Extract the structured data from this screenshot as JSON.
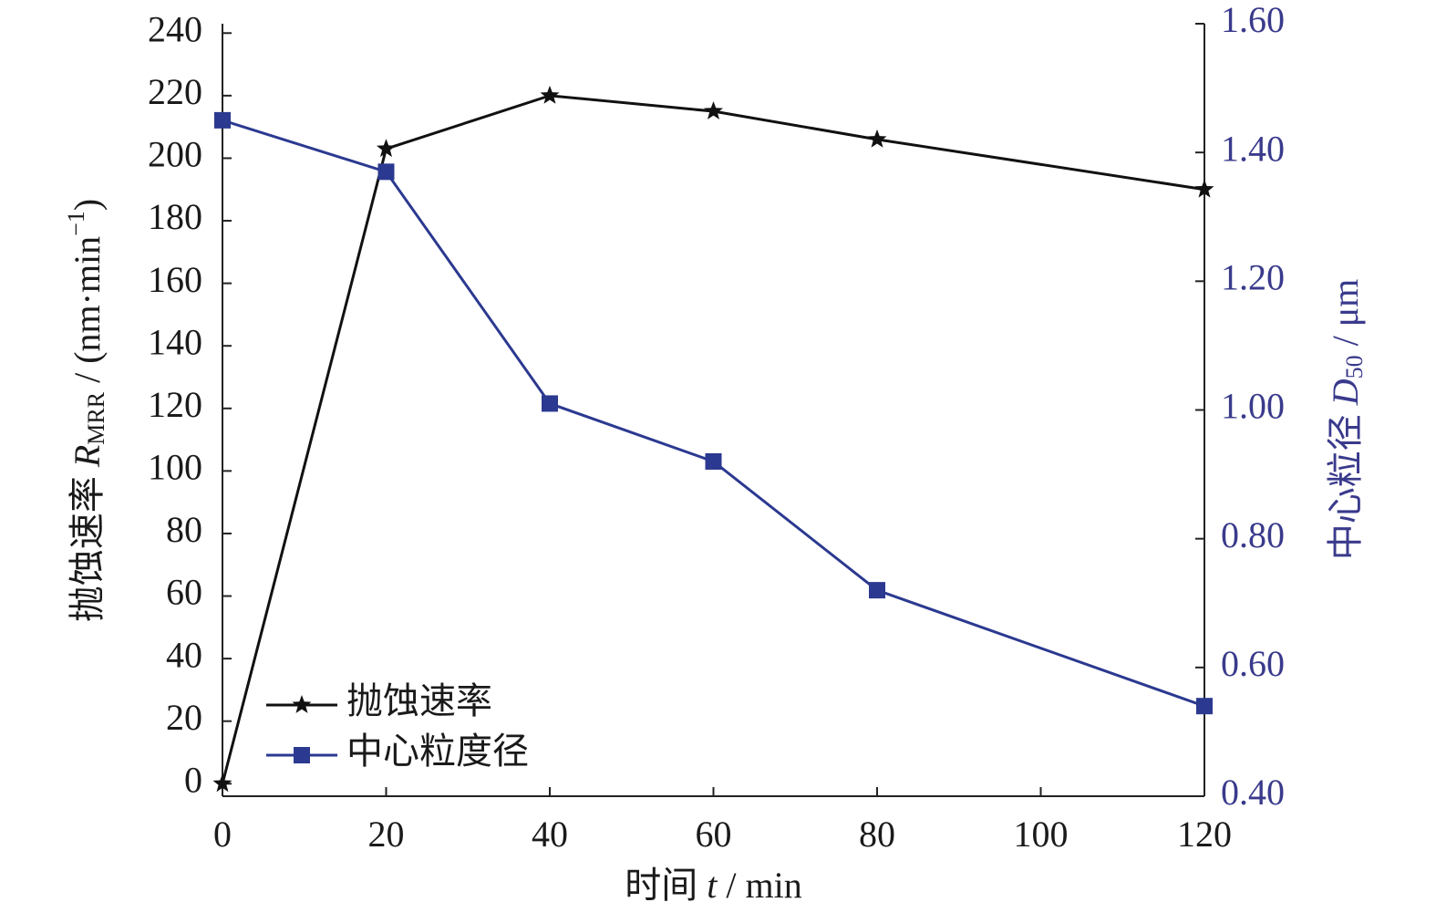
{
  "chart_data": {
    "type": "line",
    "x": [
      0,
      20,
      40,
      60,
      80,
      120
    ],
    "xlim": [
      0,
      120
    ],
    "xticks": [
      0,
      20,
      40,
      60,
      80,
      100,
      120
    ],
    "ylim": [
      -4,
      243
    ],
    "yticks": [
      0,
      20,
      40,
      60,
      80,
      100,
      120,
      140,
      160,
      180,
      200,
      220,
      240
    ],
    "y2lim": [
      0.4,
      1.6
    ],
    "y2ticks": [
      {
        "value": 0.4,
        "label": "0.40"
      },
      {
        "value": 0.6,
        "label": "0.60"
      },
      {
        "value": 0.8,
        "label": "0.80"
      },
      {
        "value": 1.0,
        "label": "1.00"
      },
      {
        "value": 1.2,
        "label": "1.20"
      },
      {
        "value": 1.4,
        "label": "1.40"
      },
      {
        "value": 1.6,
        "label": "1.60"
      }
    ],
    "x_label": [
      "时间",
      "t",
      "/ min"
    ],
    "y_label": [
      "抛蚀速率",
      "R",
      "MRR",
      "/ (nm·min",
      "−1",
      ")"
    ],
    "y2_label": [
      "中心粒径",
      "D",
      "50",
      "/ μm"
    ],
    "legend": "lower left",
    "series": [
      {
        "name": "抛蚀速率",
        "color": "#111111",
        "marker": "star",
        "values": [
          0,
          203,
          220,
          215,
          206,
          190
        ]
      },
      {
        "name": "中心粒度径",
        "color": "#2b3990",
        "marker": "square",
        "axis": "y2",
        "values": [
          1.45,
          1.37,
          1.01,
          0.92,
          0.72,
          0.54
        ]
      }
    ]
  }
}
